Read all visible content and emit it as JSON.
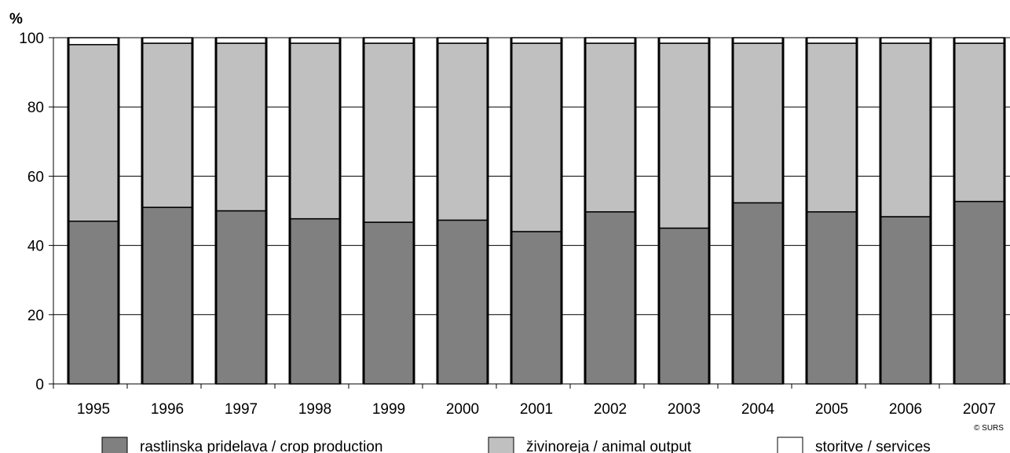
{
  "chart_data": {
    "type": "bar",
    "stacked": true,
    "percent": true,
    "ylabel": "%",
    "ylim": [
      0,
      100
    ],
    "yticks": [
      0,
      20,
      40,
      60,
      80,
      100
    ],
    "grid": true,
    "legend_position": "bottom",
    "categories": [
      "1995",
      "1996",
      "1997",
      "1998",
      "1999",
      "2000",
      "2001",
      "2002",
      "2003",
      "2004",
      "2005",
      "2006",
      "2007"
    ],
    "series": [
      {
        "name": "rastlinska pridelava / crop production",
        "color": "#808080",
        "values": [
          47.0,
          51.0,
          50.0,
          47.7,
          46.7,
          47.3,
          44.0,
          49.7,
          45.0,
          52.3,
          49.7,
          48.3,
          52.7
        ]
      },
      {
        "name": "živinoreja / animal output",
        "color": "#c0c0c0",
        "values": [
          51.0,
          47.4,
          48.4,
          50.7,
          51.7,
          51.1,
          54.4,
          48.7,
          53.4,
          46.1,
          48.7,
          50.1,
          45.7
        ]
      },
      {
        "name": "storitve / services",
        "color": "#ffffff",
        "values": [
          2.0,
          1.6,
          1.6,
          1.6,
          1.6,
          1.6,
          1.6,
          1.6,
          1.6,
          1.6,
          1.6,
          1.6,
          1.6
        ]
      }
    ],
    "credit": "© SURS"
  }
}
